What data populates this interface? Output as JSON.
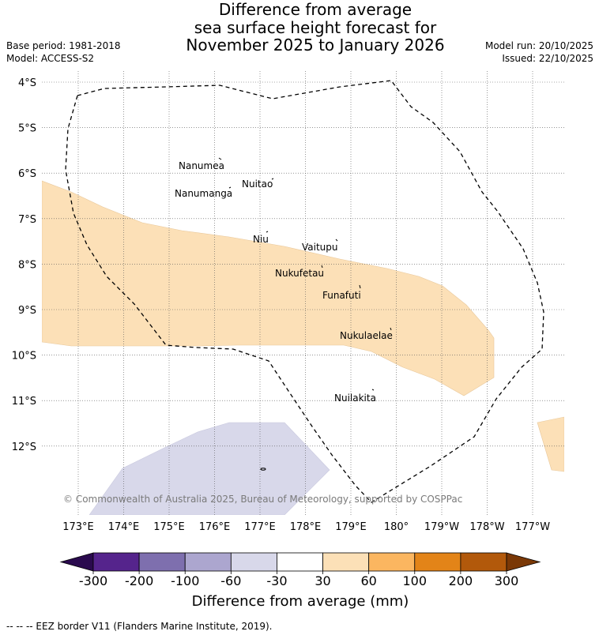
{
  "title": {
    "line1": "Difference from average",
    "line2": "sea surface height forecast for",
    "line3": "November 2025 to January 2026"
  },
  "meta": {
    "base_period": "Base period: 1981-2018",
    "model": "Model: ACCESS-S2",
    "model_run": "Model run: 20/10/2025",
    "issued": "Issued: 22/10/2025"
  },
  "map": {
    "lat_labels": [
      "4°S",
      "5°S",
      "6°S",
      "7°S",
      "8°S",
      "9°S",
      "10°S",
      "11°S",
      "12°S"
    ],
    "lon_labels": [
      "173°E",
      "174°E",
      "175°E",
      "176°E",
      "177°E",
      "178°E",
      "179°E",
      "180°",
      "179°W",
      "178°W",
      "177°W"
    ],
    "islands": [
      "Nanumea",
      "Nuitao",
      "Nanumanga",
      "Niu",
      "Vaitupu",
      "Nukufetau",
      "Funafuti",
      "Nukulaelae",
      "Nuilakita"
    ],
    "copyright": "© Commonwealth of Australia 2025, Bureau of Meteorology, supported by COSPPac",
    "anomaly_colors": {
      "above_30_60": "#fce0b7",
      "below_-60_-30": "#d8d8ea"
    },
    "eez_style": "dashed"
  },
  "colorbar": {
    "ticks": [
      "-300",
      "-200",
      "-100",
      "-60",
      "-30",
      "30",
      "60",
      "100",
      "200",
      "300"
    ],
    "colors": [
      "#2a0a4e",
      "#55248c",
      "#7e6fae",
      "#aca6cf",
      "#d8d8ea",
      "#ffffff",
      "#fce0b7",
      "#fbb660",
      "#e38418",
      "#b2590b",
      "#7a3806"
    ],
    "label": "Difference from average (mm)"
  },
  "footer": "--  --  -- EEZ border V11 (Flanders Marine Institute, 2019)."
}
